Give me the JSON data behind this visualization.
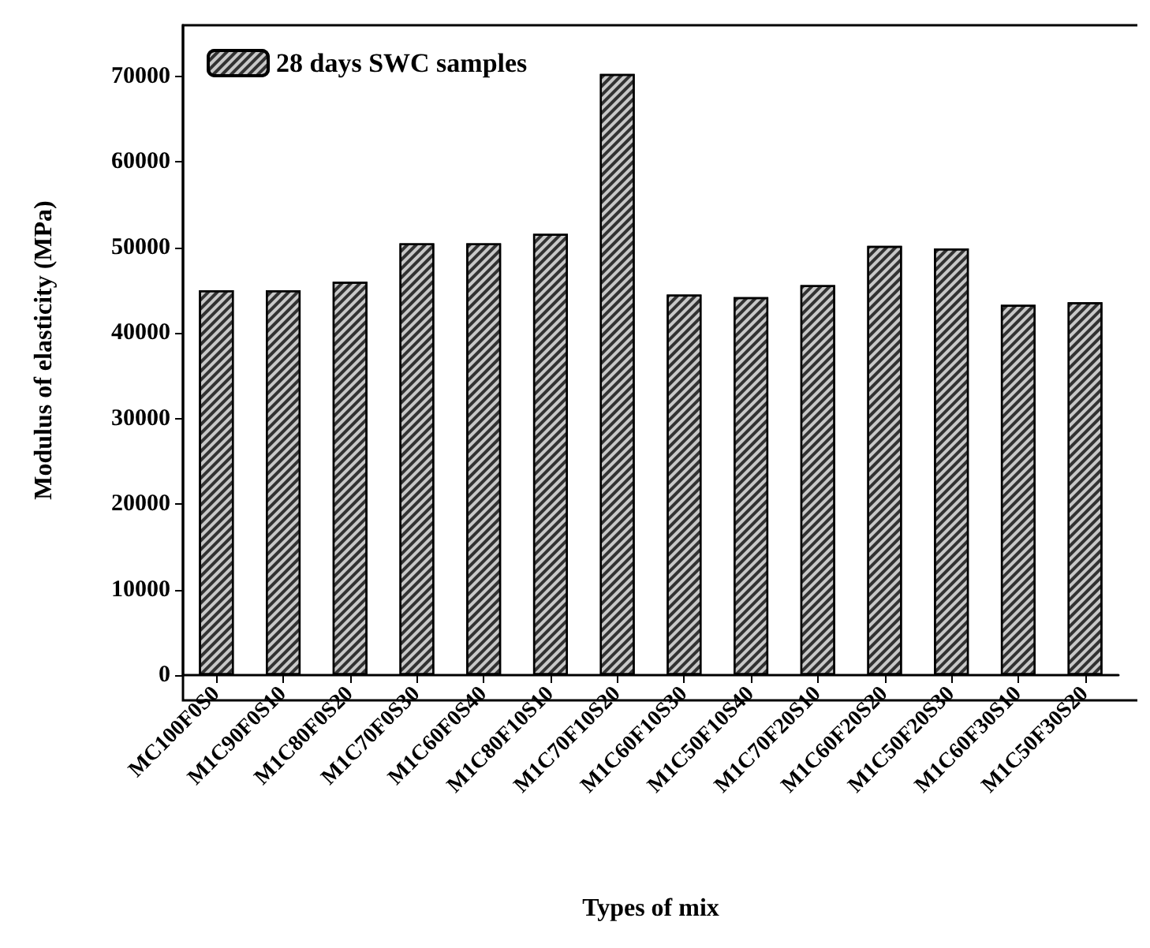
{
  "chart_data": {
    "type": "bar",
    "xlabel": "Types of mix",
    "ylabel": "Modulus of elasticity (MPa)",
    "categories": [
      "MC100F0S0",
      "M1C90F0S10",
      "M1C80F0S20",
      "M1C70F0S30",
      "M1C60F0S40",
      "M1C80F10S10",
      "M1C70F10S20",
      "M1C60F10S30",
      "M1C50F10S40",
      "M1C70F20S10",
      "M1C60F20S20",
      "M1C50F20S30",
      "M1C60F30S10",
      "M1C50F30S20"
    ],
    "series": [
      {
        "name": "28 days SWC samples",
        "color": "#c8c8c8",
        "values": [
          45000,
          45000,
          46000,
          50500,
          50500,
          51600,
          70300,
          44500,
          44200,
          45600,
          50200,
          49900,
          43300,
          43600
        ]
      }
    ],
    "ylim": [
      0,
      76000
    ],
    "yticks": [
      0,
      10000,
      20000,
      30000,
      40000,
      50000,
      60000,
      70000
    ],
    "grid": false,
    "legend": "top left"
  }
}
